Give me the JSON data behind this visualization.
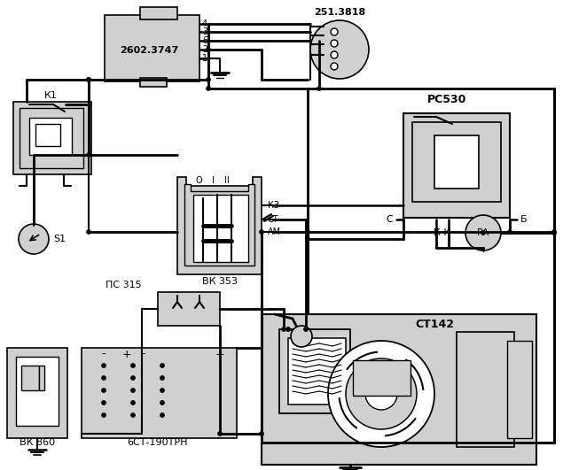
{
  "bg": "#ffffff",
  "fg": "#000000",
  "fill": "#d0d0d0",
  "fill2": "#e0e0e0",
  "lw_main": 2.0,
  "lw_thin": 1.2,
  "labels": {
    "k1": "К1",
    "s1": "S1",
    "relay2602": "2602.3747",
    "relay251": "251.3818",
    "rc530": "РС530",
    "vk353": "ВК 353",
    "ps315": "ПС 315",
    "vk860": "ВК 860",
    "bat": "6СТ-190ТРН",
    "st142": "СТ142",
    "ra": "РА",
    "kz": "КЗ",
    "ct": "СТ",
    "am": "АМ",
    "o_pos": "О",
    "i_pos": "I",
    "ii_pos": "II",
    "c_term": "С",
    "kk_term": "К К",
    "b_term": "Б",
    "pins": [
      "4",
      "3",
      "6",
      "2",
      "1"
    ]
  }
}
